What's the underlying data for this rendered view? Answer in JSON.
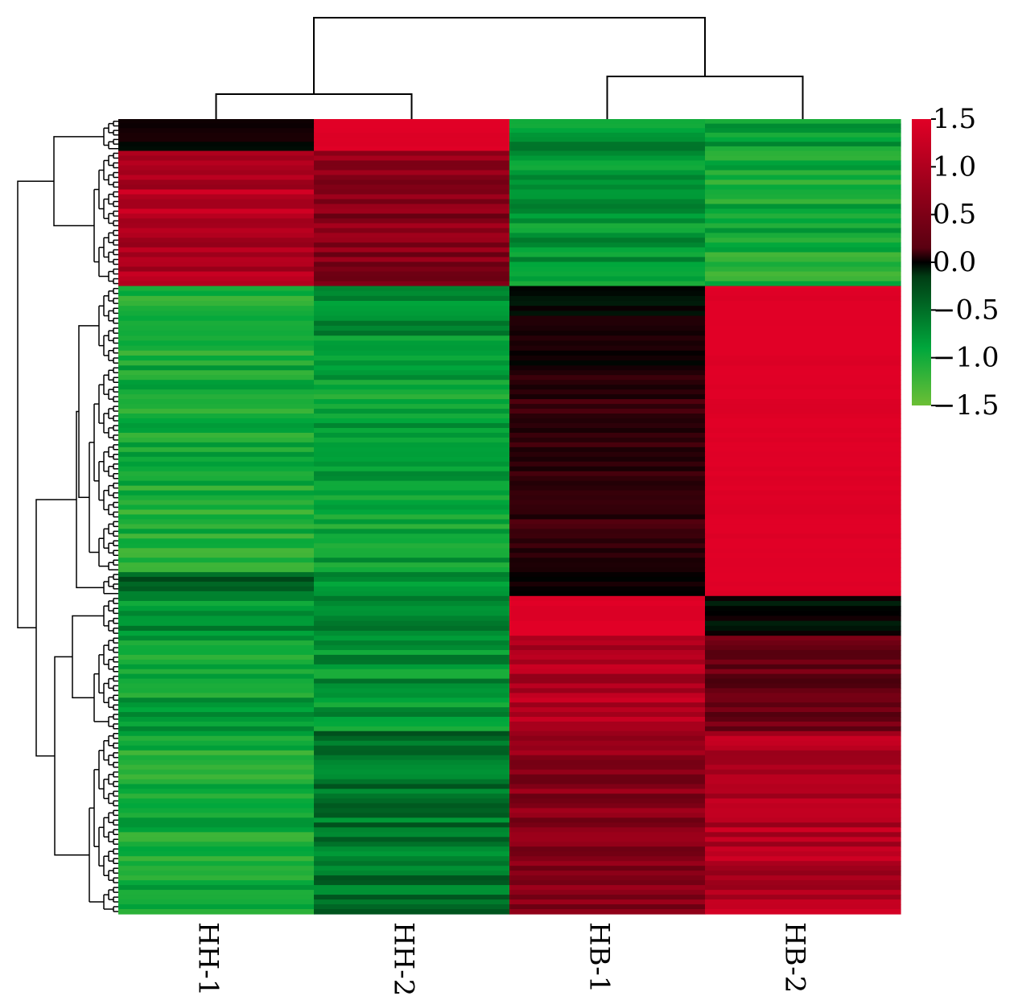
{
  "chart_data": {
    "type": "heatmap",
    "title": "",
    "columns": [
      "HH-1",
      "HH-2",
      "HB-1",
      "HB-2"
    ],
    "colorbar": {
      "min": -1.5,
      "max": 1.5,
      "ticks": [
        "1.5",
        "1.0",
        "0.5",
        "0.0",
        "−0.5",
        "−1.0",
        "−1.5"
      ],
      "tick_values": [
        1.5,
        1.0,
        0.5,
        0.0,
        -0.5,
        -1.0,
        -1.5
      ],
      "colors": {
        "low": "#6cbf35",
        "low_mid": "#00a73c",
        "mid": "#000000",
        "high": "#e10026"
      }
    },
    "row_blocks": [
      {
        "fraction": 0.04,
        "values": [
          0.1,
          1.5,
          -0.9,
          -1.0
        ]
      },
      {
        "fraction": 0.17,
        "values": [
          1.2,
          0.9,
          -0.9,
          -1.1
        ]
      },
      {
        "fraction": 0.1,
        "values": [
          -1.1,
          -0.9,
          0.05,
          1.5
        ]
      },
      {
        "fraction": 0.26,
        "values": [
          -1.1,
          -1.0,
          0.35,
          1.5
        ]
      },
      {
        "fraction": 0.03,
        "values": [
          -0.6,
          -0.9,
          0.05,
          1.5
        ]
      },
      {
        "fraction": 0.05,
        "values": [
          -0.9,
          -0.8,
          1.5,
          0.0
        ]
      },
      {
        "fraction": 0.12,
        "values": [
          -1.0,
          -0.9,
          1.2,
          0.7
        ]
      },
      {
        "fraction": 0.23,
        "values": [
          -1.1,
          -0.7,
          0.9,
          1.2
        ]
      }
    ],
    "column_dendrogram": [
      [
        "HH-1",
        "HH-2"
      ],
      [
        "HB-1",
        "HB-2"
      ]
    ],
    "legend_position": "top-right"
  }
}
